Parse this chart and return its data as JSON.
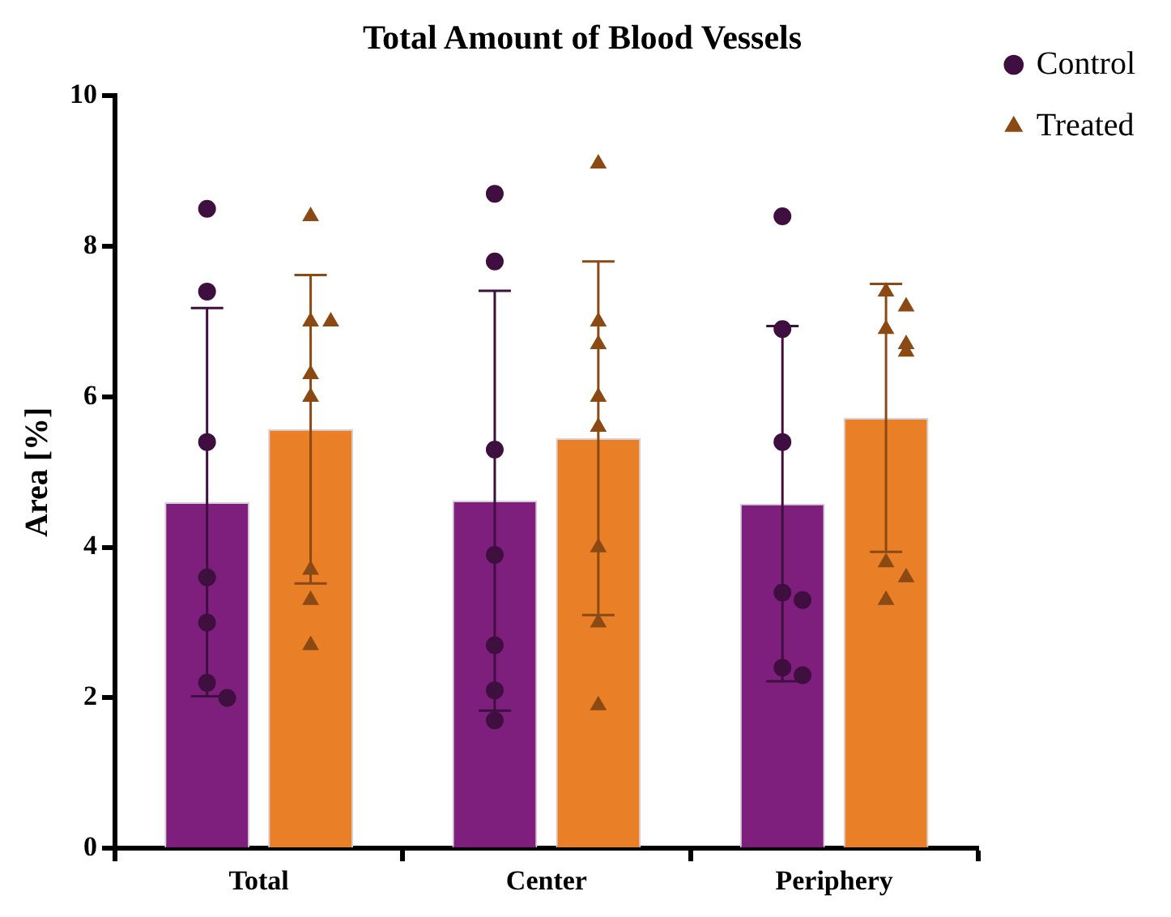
{
  "chart_data": {
    "type": "bar",
    "title": "Total Amount of Blood Vessels",
    "ylabel": "Area [%]",
    "categories": [
      "Total",
      "Center",
      "Periphery"
    ],
    "series": [
      {
        "color": "#7f1f7d",
        "values": [
          4.6,
          4.62,
          4.58
        ],
        "errors": [
          2.58,
          2.79,
          2.36
        ]
      },
      {
        "color": "#e98028",
        "values": [
          5.57,
          5.45,
          5.72
        ],
        "errors": [
          2.05,
          2.35,
          1.78
        ]
      },
      {
        "type": "scatter",
        "name": "Control",
        "color": "#3f0f3f",
        "x": [
          "Total",
          "Total",
          "Total",
          "Total",
          "Total",
          "Total",
          "Total",
          "Center",
          "Center",
          "Center",
          "Center",
          "Center",
          "Center",
          "Center",
          "Periphery",
          "Periphery",
          "Periphery",
          "Periphery",
          "Periphery",
          "Periphery",
          "Periphery"
        ],
        "values": [
          8.5,
          7.4,
          5.4,
          3.6,
          3.0,
          2.2,
          2.0,
          8.7,
          7.8,
          5.3,
          3.9,
          2.7,
          2.1,
          1.7,
          8.4,
          6.9,
          5.4,
          3.4,
          3.3,
          2.4,
          2.3
        ],
        "marker": "circle"
      },
      {
        "type": "scatter",
        "name": "Treated",
        "color": "#8b4a14",
        "x": [
          "Total",
          "Total",
          "Total",
          "Total",
          "Total",
          "Total",
          "Total",
          "Total",
          "Center",
          "Center",
          "Center",
          "Center",
          "Center",
          "Center",
          "Center",
          "Center",
          "Periphery",
          "Periphery",
          "Periphery",
          "Periphery",
          "Periphery",
          "Periphery",
          "Periphery",
          "Periphery"
        ],
        "values": [
          8.4,
          7.0,
          7.0,
          6.3,
          6.0,
          3.7,
          3.3,
          2.7,
          9.1,
          7.0,
          6.7,
          6.0,
          5.6,
          4.0,
          3.0,
          1.9,
          7.4,
          7.2,
          6.9,
          6.7,
          6.6,
          3.8,
          3.6,
          3.3
        ],
        "marker": "triangle"
      }
    ],
    "ylim": [
      0,
      10
    ],
    "yticks": [
      0,
      2,
      4,
      6,
      8,
      10
    ],
    "grid": false,
    "legend": "top right"
  }
}
